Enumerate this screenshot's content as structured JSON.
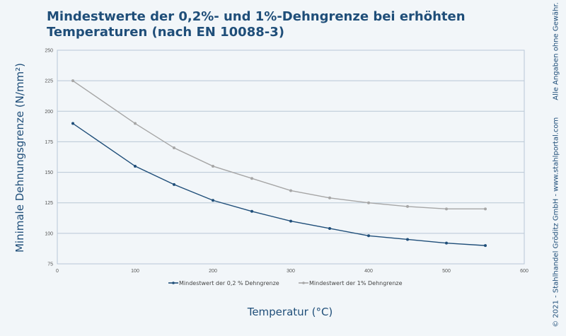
{
  "chart_data": {
    "type": "line",
    "title": "Mindestwerte der 0,2%- und 1%-Dehngrenze bei erhöhten Temperaturen (nach EN 10088-3)",
    "xlabel": "Temperatur (°C)",
    "ylabel": "Minimale Dehnungsgrenze (N/mm²)",
    "xlim": [
      0,
      600
    ],
    "ylim": [
      75,
      250
    ],
    "xticks": [
      0,
      100,
      200,
      300,
      400,
      500,
      600
    ],
    "yticks": [
      75,
      100,
      125,
      150,
      175,
      200,
      225,
      250
    ],
    "grid": "horizontal",
    "legend": "bottom",
    "x": [
      20,
      100,
      150,
      200,
      250,
      300,
      350,
      400,
      450,
      500,
      550
    ],
    "series": [
      {
        "name": "Mindestwert der 0,2 % Dehngrenze",
        "color": "#1f4e79",
        "values": [
          190,
          155,
          140,
          127,
          118,
          110,
          104,
          98,
          95,
          92,
          90
        ]
      },
      {
        "name": "Mindestwert der 1% Dehngrenze",
        "color": "#a6a6a6",
        "values": [
          225,
          190,
          170,
          155,
          145,
          135,
          129,
          125,
          122,
          120,
          120
        ]
      }
    ]
  },
  "side_note": {
    "copyright": "© 2021 - Stahlhandel Gröditz GmbH - www.stahlportal.com",
    "disclaimer": "Alle Angaben ohne Gewähr."
  }
}
